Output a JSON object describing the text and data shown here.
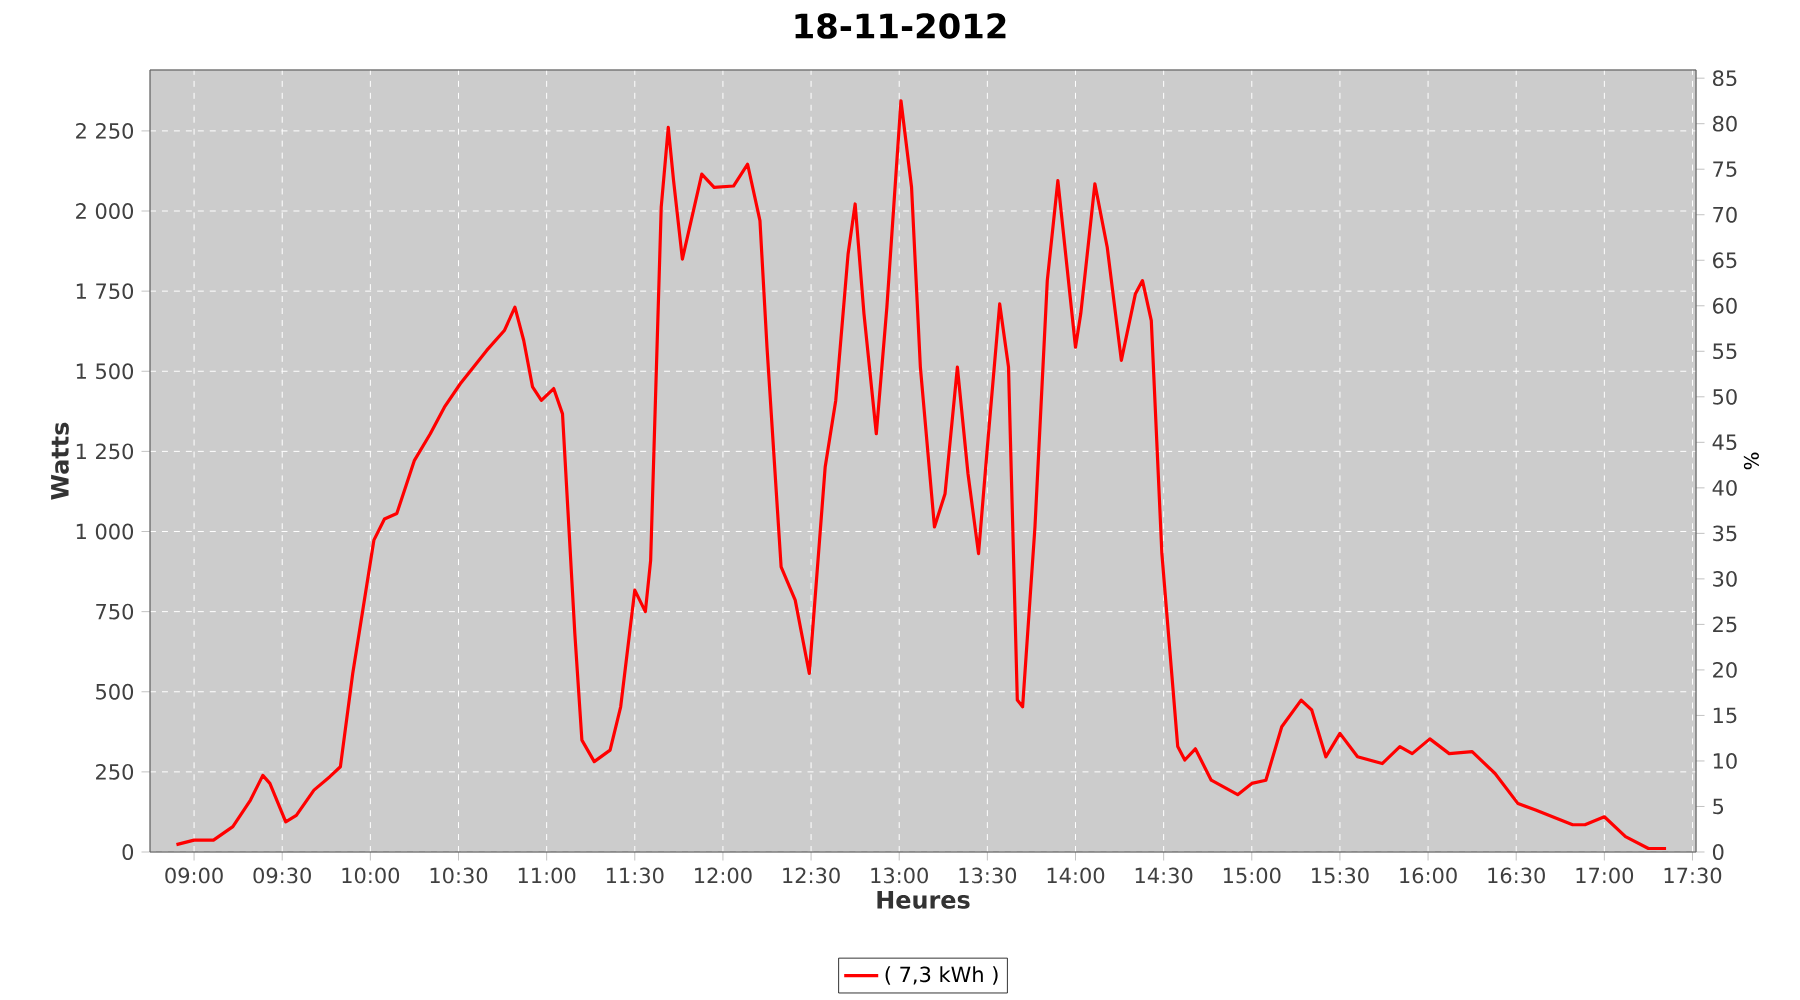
{
  "chart_data": {
    "type": "line",
    "title": "18-11-2012",
    "xlabel": "Heures",
    "ylabel": "Watts",
    "y2label": "%",
    "x": [
      8.9,
      9.0,
      9.11,
      9.22,
      9.32,
      9.39,
      9.43,
      9.52,
      9.58,
      9.68,
      9.77,
      9.83,
      9.9,
      9.96,
      10.02,
      10.08,
      10.15,
      10.25,
      10.34,
      10.42,
      10.51,
      10.66,
      10.76,
      10.82,
      10.87,
      10.92,
      10.97,
      11.04,
      11.09,
      11.16,
      11.2,
      11.27,
      11.36,
      11.42,
      11.5,
      11.56,
      11.59,
      11.65,
      11.69,
      11.72,
      11.77,
      11.88,
      11.95,
      12.06,
      12.14,
      12.21,
      12.25,
      12.33,
      12.41,
      12.49,
      12.58,
      12.64,
      12.71,
      12.75,
      12.8,
      12.87,
      12.93,
      13.01,
      13.07,
      13.12,
      13.2,
      13.26,
      13.33,
      13.39,
      13.45,
      13.5,
      13.57,
      13.62,
      13.67,
      13.7,
      13.77,
      13.84,
      13.9,
      14.0,
      14.03,
      14.11,
      14.18,
      14.26,
      14.34,
      14.38,
      14.43,
      14.49,
      14.58,
      14.62,
      14.68,
      14.77,
      14.92,
      15.0,
      15.08,
      15.17,
      15.28,
      15.34,
      15.42,
      15.5,
      15.6,
      15.74,
      15.84,
      15.91,
      16.01,
      16.12,
      16.25,
      16.38,
      16.51,
      16.61,
      16.82,
      16.89,
      17.0,
      17.12,
      17.25,
      17.35
    ],
    "series": [
      {
        "name": "( 7,3 kWh )",
        "color": "#ff0000",
        "values": [
          23,
          37,
          37,
          79,
          162,
          239,
          214,
          94,
          114,
          193,
          235,
          266,
          557,
          765,
          973,
          1039,
          1056,
          1222,
          1305,
          1388,
          1461,
          1565,
          1627,
          1700,
          1596,
          1451,
          1409,
          1446,
          1367,
          681,
          349,
          282,
          318,
          453,
          817,
          750,
          910,
          2012,
          2261,
          2095,
          1850,
          2115,
          2074,
          2078,
          2146,
          1970,
          1575,
          890,
          786,
          557,
          1201,
          1409,
          1866,
          2022,
          1680,
          1305,
          1700,
          2344,
          2074,
          1513,
          1014,
          1118,
          1513,
          1181,
          931,
          1263,
          1710,
          1513,
          474,
          453,
          1014,
          1783,
          2095,
          1575,
          1680,
          2085,
          1887,
          1534,
          1742,
          1783,
          1658,
          931,
          329,
          287,
          322,
          224,
          179,
          214,
          224,
          391,
          474,
          443,
          297,
          370,
          297,
          276,
          329,
          307,
          353,
          307,
          313,
          245,
          151,
          131,
          85,
          85,
          110,
          48,
          11,
          11
        ]
      }
    ],
    "xlim": [
      8.75,
      17.52
    ],
    "ylim": [
      0,
      2440
    ],
    "y2lim": [
      0,
      85.9
    ],
    "xticks": [
      {
        "value": 9,
        "label": "09:00"
      },
      {
        "value": 9.5,
        "label": "09:30"
      },
      {
        "value": 10,
        "label": "10:00"
      },
      {
        "value": 10.5,
        "label": "10:30"
      },
      {
        "value": 11,
        "label": "11:00"
      },
      {
        "value": 11.5,
        "label": "11:30"
      },
      {
        "value": 12,
        "label": "12:00"
      },
      {
        "value": 12.5,
        "label": "12:30"
      },
      {
        "value": 13,
        "label": "13:00"
      },
      {
        "value": 13.5,
        "label": "13:30"
      },
      {
        "value": 14,
        "label": "14:00"
      },
      {
        "value": 14.5,
        "label": "14:30"
      },
      {
        "value": 15,
        "label": "15:00"
      },
      {
        "value": 15.5,
        "label": "15:30"
      },
      {
        "value": 16,
        "label": "16:00"
      },
      {
        "value": 16.5,
        "label": "16:30"
      },
      {
        "value": 17,
        "label": "17:00"
      },
      {
        "value": 17.5,
        "label": "17:30"
      }
    ],
    "yticks": [
      0,
      250,
      500,
      750,
      {
        "value": 1000,
        "label": "1 000"
      },
      {
        "value": 1250,
        "label": "1 250"
      },
      {
        "value": 1500,
        "label": "1 500"
      },
      {
        "value": 1750,
        "label": "1 750"
      },
      {
        "value": 2000,
        "label": "2 000"
      },
      {
        "value": 2250,
        "label": "2 250"
      }
    ],
    "y2ticks": [
      0,
      5,
      10,
      15,
      20,
      25,
      30,
      35,
      40,
      45,
      50,
      55,
      60,
      65,
      70,
      75,
      80,
      85
    ],
    "grid": true,
    "legend": "bottom",
    "marker": "none",
    "line_style": "solid"
  }
}
